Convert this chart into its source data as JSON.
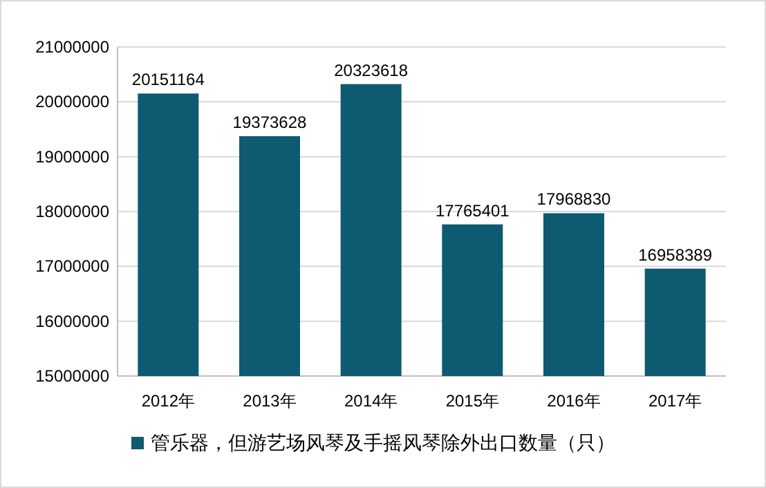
{
  "chart_data": {
    "type": "bar",
    "categories": [
      "2012年",
      "2013年",
      "2014年",
      "2015年",
      "2016年",
      "2017年"
    ],
    "series": [
      {
        "name": "管乐器，但游艺场风琴及手摇风琴除外出口数量（只）",
        "color": "#0e5a70",
        "values": [
          20151164,
          19373628,
          20323618,
          17765401,
          17968830,
          16958389
        ]
      }
    ],
    "ylim": [
      15000000,
      21000000
    ],
    "yticks": [
      15000000,
      16000000,
      17000000,
      18000000,
      19000000,
      20000000,
      21000000
    ],
    "grid": "y",
    "data_labels": true,
    "legend": "bottom"
  }
}
